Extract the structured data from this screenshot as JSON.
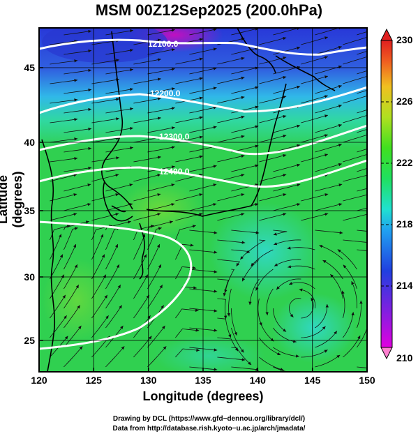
{
  "title": "MSM 00Z12Sep2025 (200.0hPa)",
  "xlabel": "Longitude (degrees)",
  "ylabel": "Latitude  (degrees)",
  "x_ticks": [
    "120",
    "125",
    "130",
    "135",
    "140",
    "145",
    "150"
  ],
  "y_ticks": [
    "25",
    "30",
    "35",
    "40",
    "45"
  ],
  "colorbar": {
    "ticks": [
      "210",
      "214",
      "218",
      "222",
      "226",
      "230"
    ],
    "range": [
      210,
      230
    ]
  },
  "contours": [
    {
      "label": "12100.0"
    },
    {
      "label": "12200.0"
    },
    {
      "label": "12300.0"
    },
    {
      "label": "12400.0"
    }
  ],
  "credits": {
    "line1": "Drawing by DCL (https://www.gfd−dennou.org/library/dcl/)",
    "line2": "Data from http://database.rish.kyoto−u.ac.jp/arch/jmadata/"
  },
  "colors": {
    "magenta": "#c000c0",
    "blue": "#2040d0",
    "cyan": "#20d0d0",
    "green": "#20d040",
    "yellow_green": "#a0e020",
    "orange": "#f08020",
    "red": "#e02020"
  }
}
